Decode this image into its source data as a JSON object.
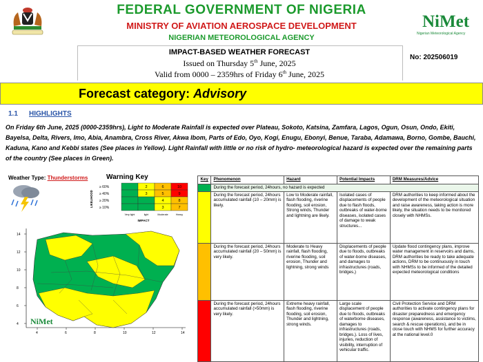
{
  "header": {
    "title": "FEDERAL GOVERNMENT OF NIGERIA",
    "ministry": "MINISTRY OF AVIATION AEROSPACE DEVELOPMENT",
    "agency": "NIGERIAN METEOROLOGICAL AGENCY",
    "logo_text": "NiMet",
    "logo_sub": "Nigerian Meteorological Agency",
    "doc_title": "IMPACT-BASED WEATHER FORECAST",
    "issued": "Issued on Thursday 5th June, 2025",
    "valid": "Valid from 0000 – 2359hrs of Friday 6th June, 2025",
    "doc_no": "No: 202506019"
  },
  "category": {
    "prefix": "Forecast category: ",
    "value": "Advisory",
    "color": "#ffff00"
  },
  "highlights": {
    "number": "1.1",
    "title": "HIGHLIGHTS",
    "text": "On Friday 6th June, 2025 (0000-2359hrs), Light to Moderate Rainfall is expected over Plateau, Sokoto, Katsina, Zamfara, Lagos, Ogun, Osun, Ondo, Ekiti, Bayelsa, Delta, Rivers, Imo, Abia, Anambra, Cross River, Akwa Ibom, Parts of Edo, Oyo, Kogi, Enugu, Ebonyi, Benue, Taraba, Adamawa, Borno, Gombe, Bauchi, Kaduna, Kano and Kebbi states (See places in Yellow). Light Rainfall with little or no risk of hydro- meteorological hazard is expected over the remaining parts of the country (See places in Green)."
  },
  "weather_type": {
    "label": "Weather Type: ",
    "value": "Thunderstorms"
  },
  "warning_key": {
    "title": "Warning Key",
    "y_axis": "LIKELIHOOD",
    "x_axis": "IMPACT",
    "rows": [
      "≥ 60%",
      "≥ 40%",
      "≥ 20%",
      "≥ 10%"
    ],
    "cols": [
      "Very light",
      "light",
      "Moderate",
      "Heavy"
    ],
    "cells": [
      [
        "",
        "2",
        "6",
        "10"
      ],
      [
        "",
        "3",
        "5",
        "9"
      ],
      [
        "",
        "",
        "4",
        "8"
      ],
      [
        "",
        "",
        "3",
        "7"
      ]
    ],
    "colors": {
      "green": "#00b050",
      "yellow": "#ffff00",
      "orange": "#ffc000",
      "red": "#ff0000"
    }
  },
  "map": {
    "lat_ticks": [
      "14",
      "12",
      "10",
      "8",
      "6",
      "4"
    ],
    "lon_ticks": [
      "4",
      "6",
      "8",
      "10",
      "12",
      "14"
    ],
    "logo_text": "NiMet"
  },
  "table": {
    "headers": [
      "Key",
      "Phenomenon",
      "Hazard",
      "Potential Impacts",
      "DRM Measures/Advice"
    ],
    "green_row": "During the forecast period, 24hours, no hazard is expected",
    "rows": [
      {
        "color": "#ffff00",
        "phenomenon": "During the forecast period, 24hours accumulated rainfall (10 – 20mm) is likely.",
        "hazard": "Low to Moderate rainfall, flash flooding, riverine flooding, soil erosion, Strong winds, Thunder and lightning are likely.",
        "impacts": "Isolated cases of displacements of people due to flash floods, outbreaks of water-borne diseases, isolated cases of damage to weak structures...",
        "drm": "DRM authorities to keep informed about the development of the meteorological situation and raise awareness, taking action is more likely, the situation needs to be monitored closely with NHMSs."
      },
      {
        "color": "#ffc000",
        "phenomenon": "During the forecast period, 24hours accumulated rainfall (20 – 50mm) is very likely.",
        "hazard": "Moderate to Heavy rainfall, flash flooding, riverine flooding, soil erosion, Thunder and lightning, strong winds",
        "impacts": "Displacements of people due to floods, outbreaks of water-borne diseases, and damages to infrastructures (roads, bridges,)",
        "drm": "Update flood contingency plans, improve water management in reservoirs and dams, DRM authorities be ready to take adequate actions, DRM to be continuously in touch with NHMSs to be informed of the detailed expected meteorological conditions"
      },
      {
        "color": "#ff0000",
        "phenomenon": "During the forecast period, 24hours accumulated rainfall (>50mm) is very likely.",
        "hazard": "Extreme heavy rainfall, flash flooding, riverine flooding, soil erosion, Thunder and lightning, strong winds.",
        "impacts": "Large scale displacement of people due to floods, outbreaks of waterborne diseases, damages to infrastructures (roads, bridges,). Loss of lives, injuries, reduction of visibility, interruption of vehicular traffic.",
        "drm": "Civil Protection Service and DRM authorities to activate contingency plans for disaster preparedness and emergency response (awareness, assistance to victims, search & rescue operations), and be in close touch with NHMS for further accuracy at the national level.0"
      }
    ]
  }
}
